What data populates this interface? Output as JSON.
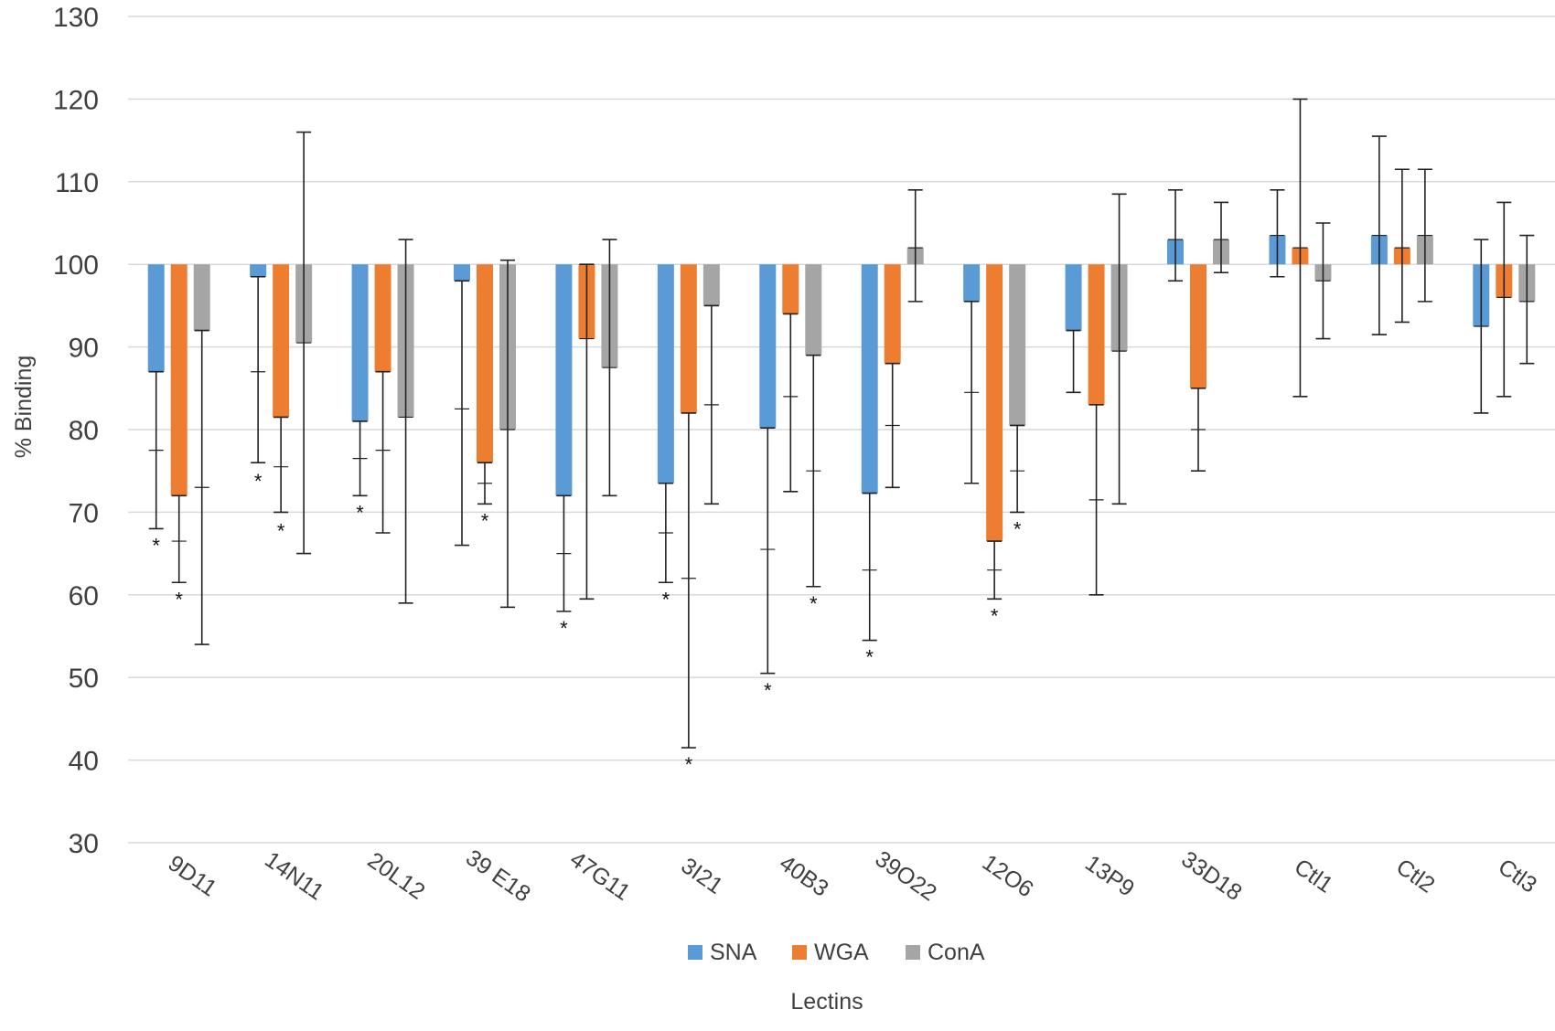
{
  "chart_data": {
    "type": "bar",
    "title": "",
    "xlabel": "Lectins",
    "ylabel": "% Binding",
    "ylim": [
      30,
      130
    ],
    "ytick_step": 10,
    "baseline": 100,
    "grid": true,
    "legend_position": "bottom",
    "categories": [
      "9D11",
      "14N11",
      "20L12",
      "39 E18",
      "47G11",
      "3I21",
      "40B3",
      "39O22",
      "12O6",
      "13P9",
      "33D18",
      "Ctl1",
      "Ctl2",
      "Ctl3"
    ],
    "series": [
      {
        "name": "SNA",
        "color": "#5B9BD5",
        "values": [
          87,
          98.5,
          81,
          98,
          72,
          73.5,
          80.2,
          72.3,
          95.5,
          92,
          103,
          103.5,
          103.5,
          92.5
        ],
        "err_low": [
          77.5,
          87,
          76.5,
          82.5,
          65,
          67.5,
          65.5,
          63,
          84.5,
          84.5,
          98,
          98.5,
          91.5,
          82
        ],
        "err_high": [
          87,
          98.5,
          81,
          98,
          72,
          73.5,
          80.2,
          72.3,
          95.5,
          92,
          109,
          109,
          115.5,
          103
        ],
        "err_min": [
          68,
          76,
          72,
          66,
          58,
          61.5,
          50.5,
          54.5,
          73.5,
          84.5,
          98,
          98.5,
          91.5,
          82
        ]
      },
      {
        "name": "WGA",
        "color": "#ED7D31",
        "values": [
          72,
          81.5,
          87,
          76,
          91,
          82,
          94,
          88,
          66.5,
          83,
          85,
          102,
          102,
          96
        ],
        "err_low": [
          66.5,
          75.5,
          77.5,
          73.5,
          91,
          62,
          84,
          80.5,
          63,
          71.5,
          80,
          102,
          102,
          96
        ],
        "err_high": [
          72,
          81.5,
          87,
          76,
          100,
          82,
          94,
          88,
          66.5,
          83,
          85,
          120,
          111.5,
          107.5
        ],
        "err_min": [
          61.5,
          70,
          67.5,
          71,
          59.5,
          41.5,
          72.5,
          73,
          59.5,
          60,
          75,
          84,
          93,
          84
        ]
      },
      {
        "name": "ConA",
        "color": "#A5A5A5",
        "values": [
          92,
          90.5,
          81.5,
          80,
          87.5,
          95,
          89,
          102,
          80.5,
          89.5,
          103,
          98,
          103.5,
          95.5
        ],
        "err_low": [
          73,
          90.5,
          81.5,
          80,
          87.5,
          83,
          75,
          102,
          75,
          89.5,
          103,
          98,
          103.5,
          95.5
        ],
        "err_high": [
          92,
          116,
          103,
          100.5,
          103,
          95,
          89,
          109,
          80.5,
          108.5,
          107.5,
          105,
          111.5,
          103.5
        ],
        "err_min": [
          54,
          65,
          59,
          58.5,
          72,
          71,
          61,
          95.5,
          70,
          71,
          99,
          91,
          95.5,
          88
        ]
      }
    ],
    "significance": [
      {
        "category": "9D11",
        "series": "SNA",
        "y": 66,
        "label": "*"
      },
      {
        "category": "9D11",
        "series": "WGA",
        "y": 59.5,
        "label": "*"
      },
      {
        "category": "14N11",
        "series": "SNA",
        "y": 73.8,
        "label": "*"
      },
      {
        "category": "14N11",
        "series": "WGA",
        "y": 67.8,
        "label": "*"
      },
      {
        "category": "20L12",
        "series": "SNA",
        "y": 70,
        "label": "*"
      },
      {
        "category": "39 E18",
        "series": "WGA",
        "y": 69,
        "label": "*"
      },
      {
        "category": "47G11",
        "series": "SNA",
        "y": 56,
        "label": "*"
      },
      {
        "category": "3I21",
        "series": "SNA",
        "y": 59.5,
        "label": "*"
      },
      {
        "category": "3I21",
        "series": "WGA",
        "y": 39.5,
        "label": "*"
      },
      {
        "category": "40B3",
        "series": "SNA",
        "y": 48.5,
        "label": "*"
      },
      {
        "category": "40B3",
        "series": "ConA",
        "y": 59,
        "label": "*"
      },
      {
        "category": "39O22",
        "series": "SNA",
        "y": 52.5,
        "label": "*"
      },
      {
        "category": "12O6",
        "series": "WGA",
        "y": 57.5,
        "label": "*"
      },
      {
        "category": "12O6",
        "series": "ConA",
        "y": 68,
        "label": "*"
      }
    ]
  }
}
